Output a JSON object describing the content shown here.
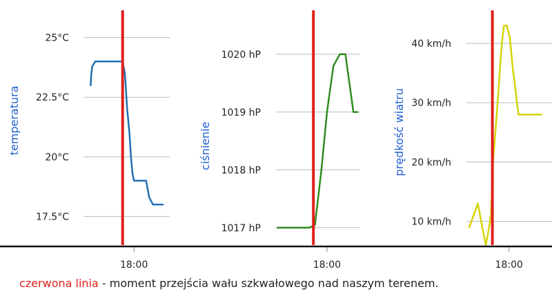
{
  "chart_data": [
    {
      "type": "line",
      "ylabel": "temperatura",
      "y_ticks": [
        "25°C",
        "22.5°C",
        "20°C",
        "17.5°C"
      ],
      "y_tick_values": [
        25,
        22.5,
        20,
        17.5
      ],
      "ylim": [
        16.3,
        26.0
      ],
      "x_tick": "18:00",
      "xlim": [
        0,
        100
      ],
      "x_tick_value": 62,
      "event_x": 47,
      "series": [
        {
          "color": "#1f6fb2",
          "x": [
            5,
            5.5,
            7,
            11,
            25,
            43,
            47,
            50,
            53,
            56,
            58,
            60,
            62,
            65,
            70,
            78,
            82,
            87,
            90,
            94,
            97,
            100
          ],
          "y": [
            23.0,
            23.4,
            23.8,
            24.0,
            24.0,
            24.0,
            24.0,
            23.5,
            22.0,
            21.0,
            20.0,
            19.3,
            19.0,
            19.0,
            19.0,
            19.0,
            18.3,
            18.0,
            18.0,
            18.0,
            18.0,
            18.0
          ]
        }
      ],
      "grid": true
    },
    {
      "type": "line",
      "ylabel": "ciśnienie",
      "y_ticks": [
        "1020 hP",
        "1019 hP",
        "1018 hP",
        "1017 hP"
      ],
      "y_tick_values": [
        1020,
        1019,
        1018,
        1017
      ],
      "ylim": [
        1016.7,
        1020.7
      ],
      "x_tick": "18:00",
      "xlim": [
        0,
        100
      ],
      "x_tick_value": 62,
      "event_x": 45,
      "series": [
        {
          "color": "#2e8b1f",
          "x": [
            0,
            10,
            30,
            40,
            47,
            55,
            62,
            70,
            78,
            80,
            85,
            90,
            95,
            100
          ],
          "y": [
            1017.0,
            1017.0,
            1017.0,
            1017.0,
            1017.05,
            1018.0,
            1019.0,
            1019.8,
            1020.0,
            1020.0,
            1020.0,
            1019.5,
            1019.0,
            1019.0
          ]
        }
      ],
      "grid": true
    },
    {
      "type": "line",
      "ylabel": "prędkość wiatru",
      "y_ticks": [
        "40 km/h",
        "30 km/h",
        "20 km/h",
        "10 km/h"
      ],
      "y_tick_values": [
        40,
        30,
        20,
        10
      ],
      "ylim": [
        6.0,
        45.0
      ],
      "x_tick": "18:00",
      "xlim": [
        0,
        100
      ],
      "x_tick_value": 55,
      "event_x": 32,
      "series": [
        {
          "color": "#d4d40a",
          "x": [
            0,
            6,
            12,
            18,
            23,
            26,
            30,
            33,
            38,
            45,
            48,
            52,
            56,
            60,
            64,
            68,
            72,
            80,
            90,
            100
          ],
          "y": [
            9.0,
            11.0,
            13.0,
            9.0,
            6.0,
            8.0,
            11.0,
            20.0,
            28.0,
            40.0,
            43.0,
            43.0,
            41.0,
            36.0,
            32.0,
            28.0,
            28.0,
            28.0,
            28.0,
            28.0
          ]
        }
      ],
      "grid": true
    }
  ],
  "caption": {
    "highlight": "czerwona linia",
    "rest": " - moment przejścia wału szkwałowego nad naszym terenem."
  },
  "colors": {
    "event_line": "#e0201c",
    "grid": "#b9b9b9",
    "baseline": "#111111",
    "axis_label": "#1e5fd0"
  }
}
